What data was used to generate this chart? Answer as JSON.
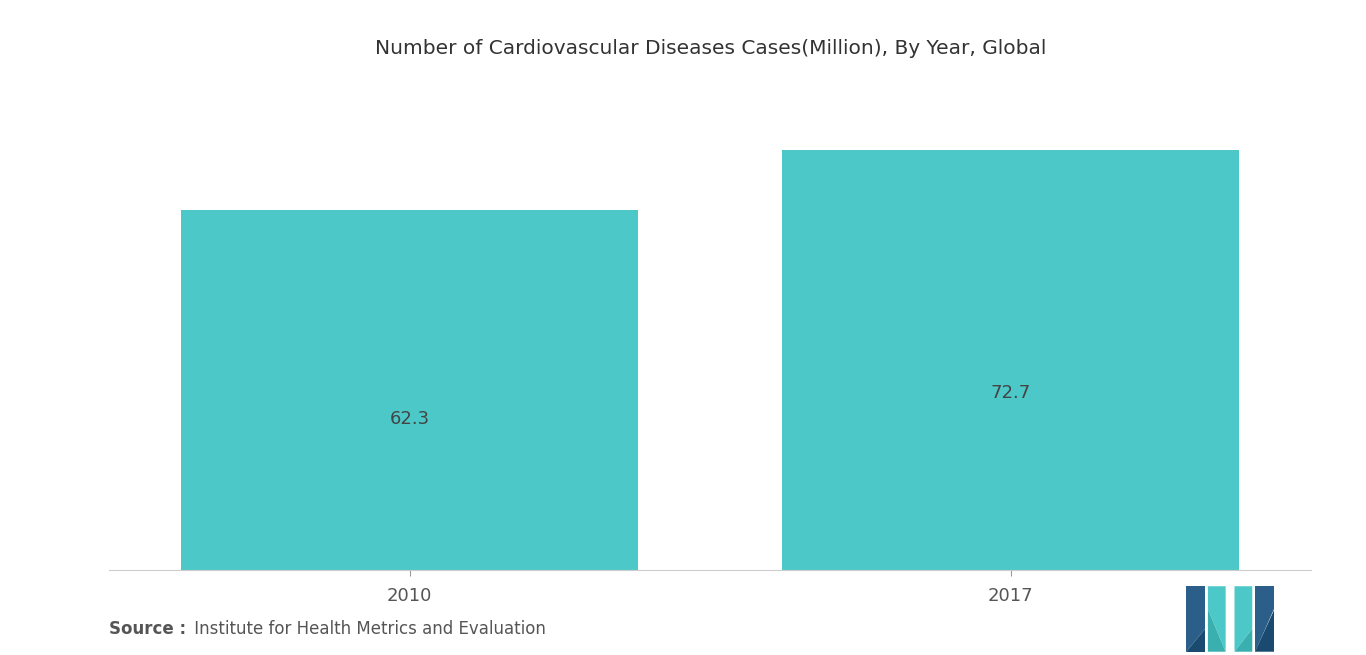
{
  "title": "Number of Cardiovascular Diseases Cases(Million), By Year, Global",
  "categories": [
    "2010",
    "2017"
  ],
  "values": [
    62.3,
    72.7
  ],
  "bar_color": "#4DC8C8",
  "label_color": "#444444",
  "label_fontsize": 13,
  "title_fontsize": 14.5,
  "background_color": "#FFFFFF",
  "source_bold": "Source :",
  "source_text": " Institute for Health Metrics and Evaluation",
  "source_fontsize": 12,
  "ylim": [
    0,
    85
  ],
  "bar_width": 0.38,
  "tick_fontsize": 13,
  "bar_positions": [
    0.25,
    0.75
  ],
  "xlim": [
    0,
    1.0
  ]
}
